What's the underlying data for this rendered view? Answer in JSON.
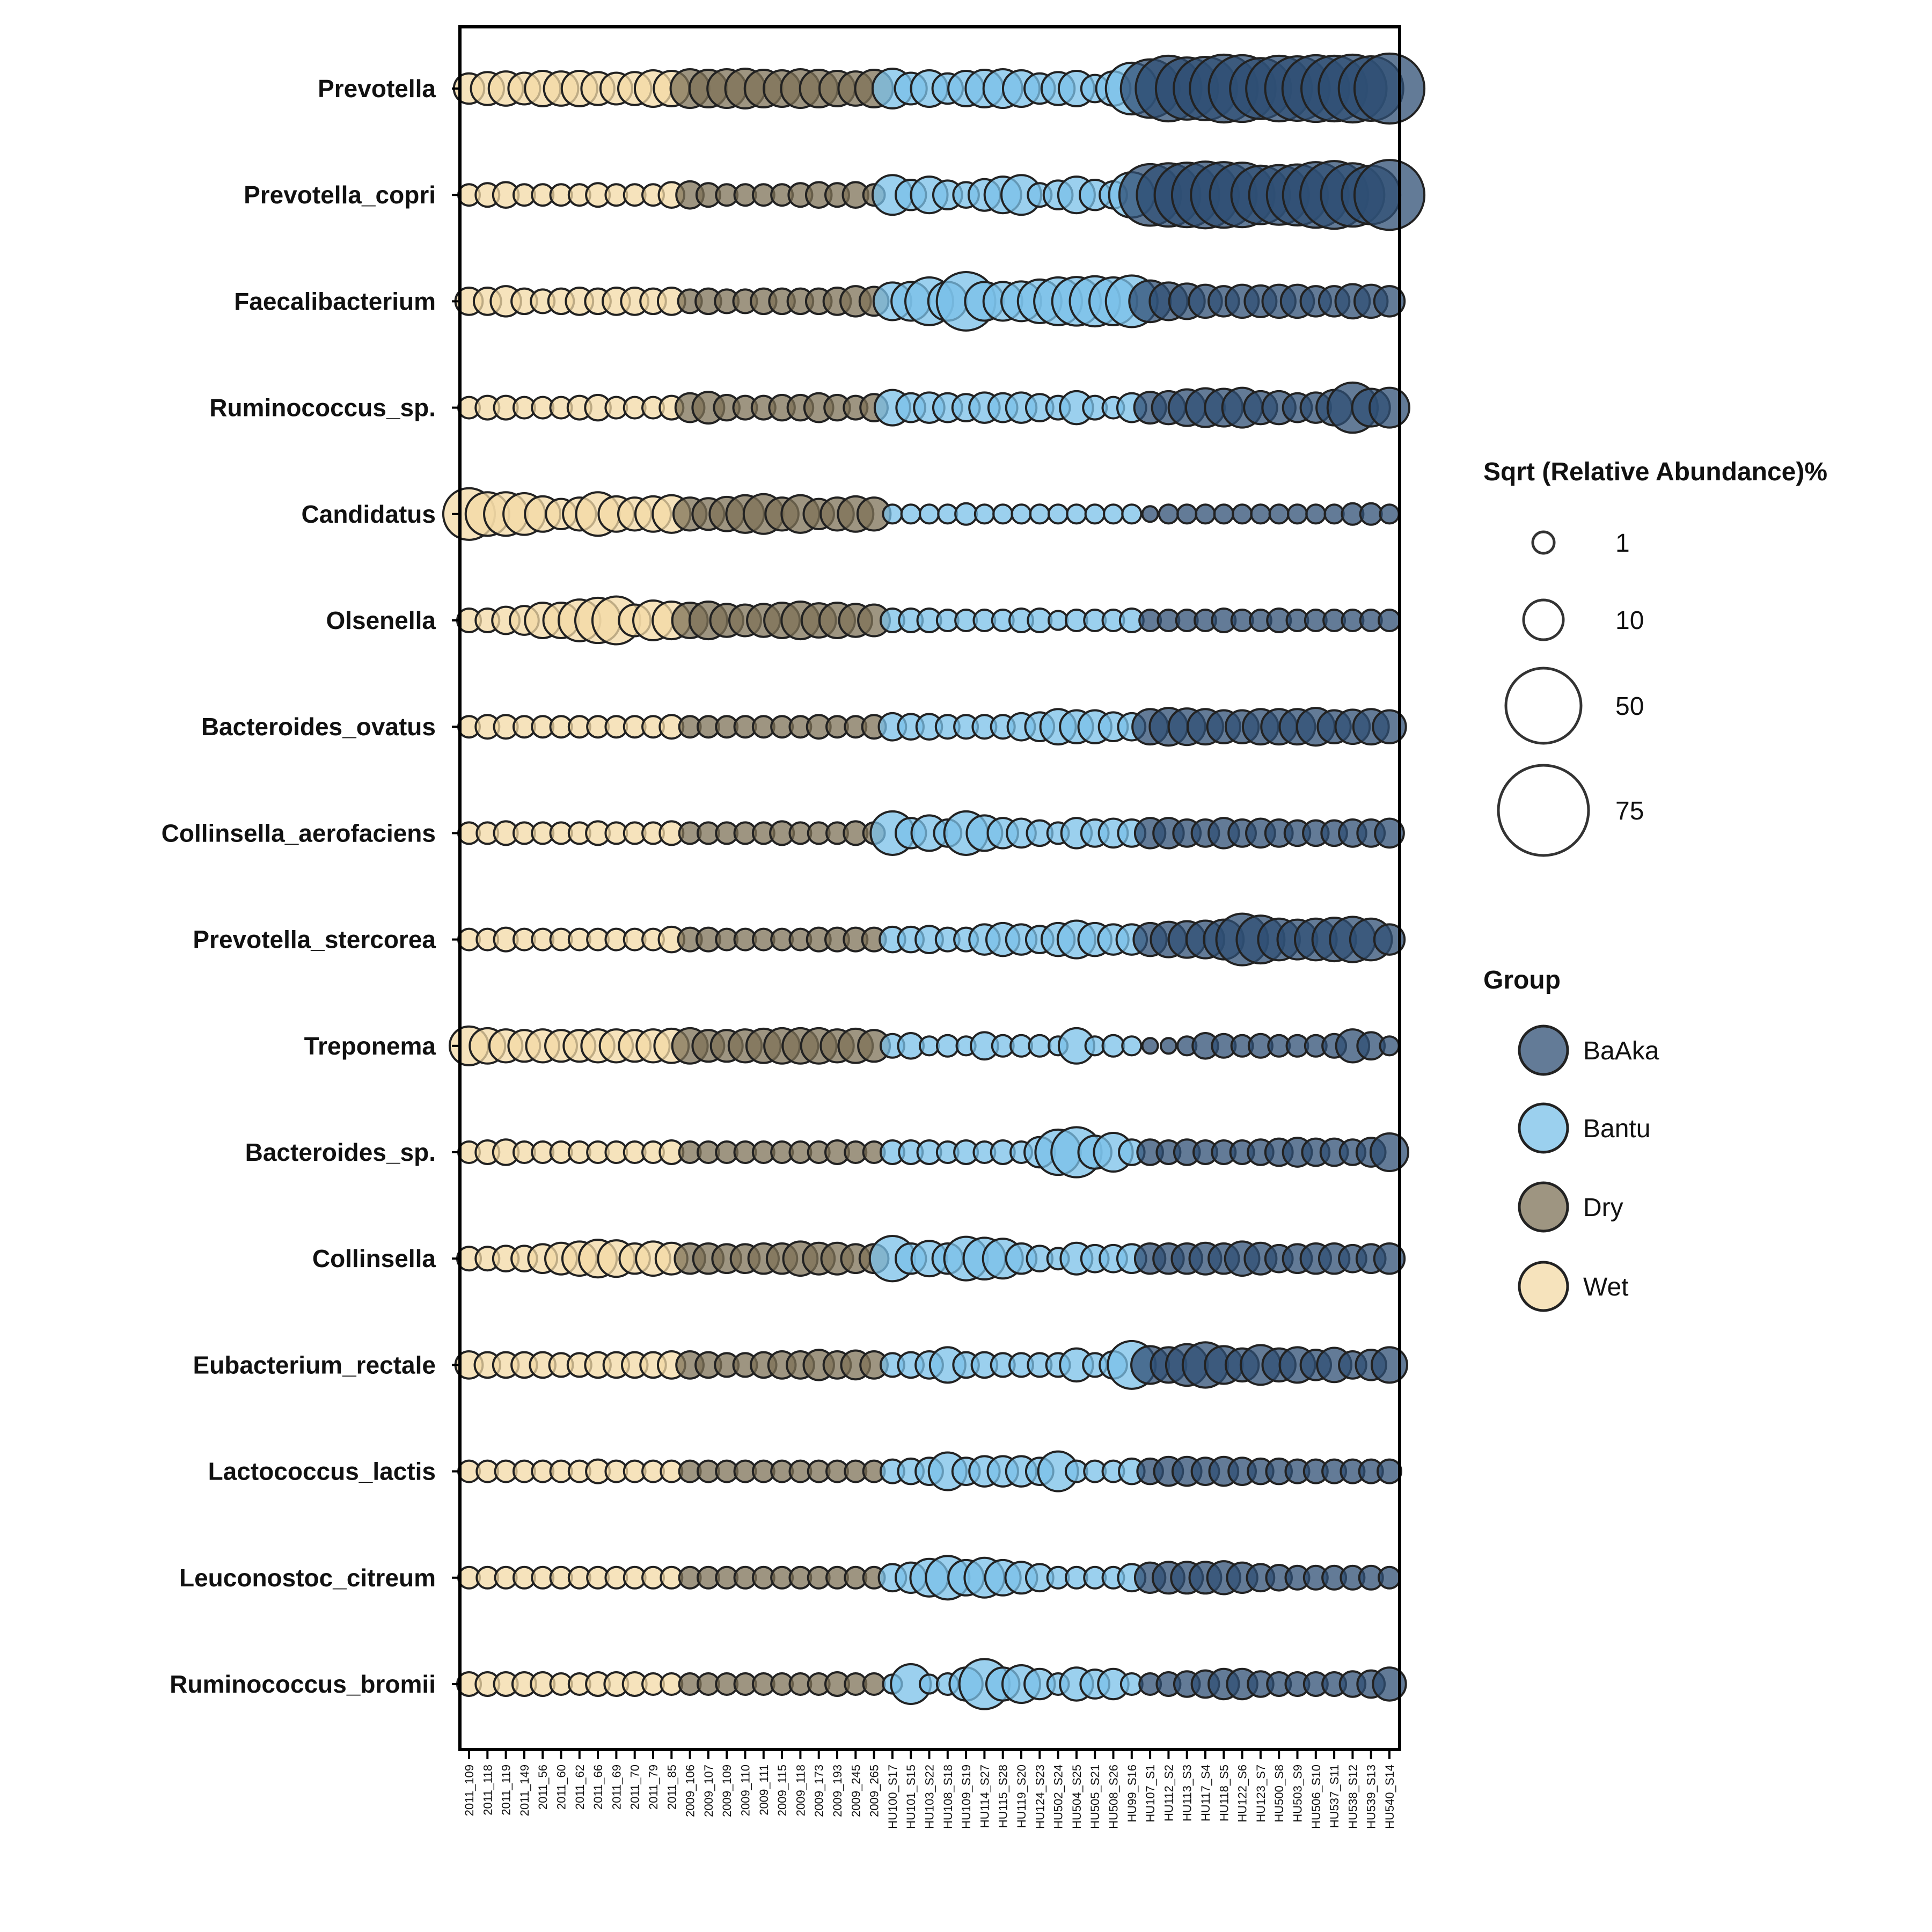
{
  "chart_data": {
    "type": "bubble",
    "samples": [
      "2011_109",
      "2011_118",
      "2011_119",
      "2011_149",
      "2011_56",
      "2011_60",
      "2011_62",
      "2011_66",
      "2011_69",
      "2011_70",
      "2011_79",
      "2011_85",
      "2009_106",
      "2009_107",
      "2009_109",
      "2009_110",
      "2009_111",
      "2009_115",
      "2009_118",
      "2009_173",
      "2009_193",
      "2009_245",
      "2009_265",
      "HU100_S17",
      "HU101_S15",
      "HU103_S22",
      "HU108_S18",
      "HU109_S19",
      "HU114_S27",
      "HU115_S28",
      "HU119_S20",
      "HU124_S23",
      "HU502_S24",
      "HU504_S25",
      "HU505_S21",
      "HU508_S26",
      "HU99_S16",
      "HU107_S1",
      "HU112_S2",
      "HU113_S3",
      "HU117_S4",
      "HU118_S5",
      "HU122_S6",
      "HU123_S7",
      "HU500_S8",
      "HU503_S9",
      "HU506_S10",
      "HU537_S11",
      "HU538_S12",
      "HU539_S13",
      "HU540_S14"
    ],
    "sample_groups": [
      "Wet",
      "Wet",
      "Wet",
      "Wet",
      "Wet",
      "Wet",
      "Wet",
      "Wet",
      "Wet",
      "Wet",
      "Wet",
      "Wet",
      "Dry",
      "Dry",
      "Dry",
      "Dry",
      "Dry",
      "Dry",
      "Dry",
      "Dry",
      "Dry",
      "Dry",
      "Dry",
      "Bantu",
      "Bantu",
      "Bantu",
      "Bantu",
      "Bantu",
      "Bantu",
      "Bantu",
      "Bantu",
      "Bantu",
      "Bantu",
      "Bantu",
      "Bantu",
      "Bantu",
      "Bantu",
      "BaAka",
      "BaAka",
      "BaAka",
      "BaAka",
      "BaAka",
      "BaAka",
      "BaAka",
      "BaAka",
      "BaAka",
      "BaAka",
      "BaAka",
      "BaAka",
      "BaAka",
      "BaAka"
    ],
    "taxa": [
      "Prevotella",
      "Prevotella_copri",
      "Faecalibacterium",
      "Ruminococcus_sp.",
      "Candidatus",
      "Olsenella",
      "Bacteroides_ovatus",
      "Collinsella_aerofaciens",
      "Prevotella_stercorea",
      "Treponema",
      "Bacteroides_sp.",
      "Collinsella",
      "Eubacterium_rectale",
      "Lactococcus_lactis",
      "Leuconostoc_citreum",
      "Ruminococcus_bromii"
    ],
    "values": [
      [
        8,
        10,
        11,
        9,
        12,
        11,
        12,
        10,
        9,
        10,
        13,
        12,
        15,
        14,
        15,
        16,
        14,
        13,
        15,
        14,
        12,
        11,
        14,
        16,
        9,
        13,
        8,
        12,
        14,
        15,
        13,
        8,
        10,
        12,
        6,
        11,
        30,
        40,
        52,
        46,
        48,
        56,
        54,
        44,
        52,
        50,
        54,
        52,
        56,
        50,
        60
      ],
      [
        3,
        4,
        5,
        3,
        3,
        3,
        3,
        4,
        3,
        3,
        3,
        5,
        6,
        4,
        3,
        3,
        3,
        3,
        4,
        5,
        4,
        5,
        3,
        16,
        8,
        13,
        7,
        5,
        9,
        13,
        16,
        4,
        7,
        13,
        8,
        6,
        22,
        45,
        48,
        50,
        54,
        52,
        50,
        40,
        42,
        44,
        52,
        56,
        48,
        40,
        60
      ],
      [
        6,
        6,
        8,
        5,
        4,
        5,
        6,
        5,
        6,
        6,
        5,
        6,
        4,
        5,
        4,
        4,
        5,
        5,
        5,
        5,
        6,
        8,
        7,
        14,
        15,
        25,
        15,
        40,
        15,
        15,
        16,
        20,
        25,
        26,
        28,
        25,
        30,
        18,
        14,
        12,
        10,
        8,
        10,
        9,
        10,
        10,
        8,
        8,
        11,
        10,
        8
      ],
      [
        3,
        4,
        4,
        3,
        3,
        3,
        4,
        5,
        3,
        3,
        3,
        4,
        7,
        9,
        5,
        4,
        4,
        5,
        5,
        7,
        5,
        4,
        6,
        12,
        7,
        8,
        7,
        6,
        8,
        7,
        8,
        6,
        4,
        10,
        4,
        3,
        7,
        9,
        10,
        13,
        15,
        14,
        16,
        10,
        10,
        7,
        8,
        12,
        28,
        14,
        16
      ],
      [
        30,
        20,
        20,
        18,
        12,
        8,
        10,
        20,
        12,
        10,
        12,
        14,
        10,
        9,
        11,
        14,
        16,
        10,
        14,
        8,
        10,
        12,
        10,
        2,
        2,
        2,
        2,
        3,
        2,
        2,
        2,
        2,
        2,
        2,
        2,
        2,
        2,
        1,
        2,
        2,
        2,
        2,
        2,
        2,
        2,
        2,
        2,
        2,
        3,
        3,
        2
      ],
      [
        4,
        4,
        6,
        7,
        12,
        12,
        18,
        22,
        25,
        9,
        16,
        14,
        12,
        14,
        10,
        9,
        10,
        12,
        14,
        11,
        12,
        10,
        9,
        4,
        4,
        4,
        3,
        3,
        3,
        3,
        4,
        4,
        2,
        3,
        3,
        3,
        4,
        3,
        3,
        3,
        3,
        4,
        3,
        3,
        4,
        3,
        3,
        3,
        3,
        3,
        3
      ],
      [
        3,
        4,
        4,
        3,
        3,
        3,
        3,
        3,
        3,
        3,
        3,
        4,
        3,
        3,
        3,
        3,
        3,
        3,
        3,
        4,
        3,
        3,
        4,
        6,
        5,
        5,
        4,
        4,
        4,
        4,
        6,
        7,
        12,
        10,
        10,
        7,
        6,
        12,
        14,
        13,
        12,
        10,
        10,
        12,
        12,
        12,
        14,
        10,
        11,
        12,
        10
      ],
      [
        3,
        3,
        4,
        3,
        3,
        3,
        3,
        4,
        3,
        3,
        3,
        4,
        3,
        3,
        3,
        3,
        3,
        4,
        3,
        3,
        3,
        4,
        3,
        20,
        8,
        12,
        6,
        20,
        12,
        8,
        7,
        5,
        3,
        8,
        6,
        7,
        6,
        8,
        8,
        6,
        6,
        8,
        6,
        7,
        6,
        5,
        5,
        5,
        6,
        6,
        7
      ],
      [
        3,
        3,
        4,
        3,
        3,
        3,
        3,
        3,
        3,
        3,
        3,
        5,
        4,
        4,
        3,
        3,
        3,
        3,
        3,
        4,
        4,
        4,
        4,
        5,
        5,
        6,
        4,
        4,
        8,
        10,
        8,
        6,
        10,
        14,
        10,
        8,
        8,
        10,
        12,
        13,
        14,
        16,
        30,
        25,
        18,
        16,
        18,
        20,
        22,
        18,
        8
      ],
      [
        15,
        12,
        10,
        9,
        10,
        9,
        9,
        10,
        10,
        9,
        10,
        11,
        12,
        9,
        9,
        10,
        11,
        12,
        12,
        12,
        10,
        11,
        9,
        4,
        5,
        2,
        3,
        2,
        6,
        3,
        3,
        3,
        2,
        12,
        2,
        3,
        2,
        1,
        1,
        2,
        5,
        4,
        3,
        4,
        3,
        3,
        3,
        4,
        10,
        6,
        2
      ],
      [
        3,
        4,
        5,
        3,
        3,
        3,
        3,
        3,
        3,
        3,
        3,
        4,
        3,
        3,
        3,
        3,
        3,
        3,
        3,
        3,
        4,
        3,
        3,
        4,
        4,
        4,
        3,
        4,
        3,
        4,
        3,
        8,
        22,
        28,
        10,
        15,
        5,
        5,
        4,
        5,
        4,
        4,
        4,
        5,
        6,
        7,
        6,
        6,
        5,
        7,
        14
      ],
      [
        4,
        4,
        5,
        5,
        7,
        9,
        11,
        14,
        13,
        8,
        11,
        9,
        8,
        8,
        7,
        7,
        8,
        8,
        11,
        9,
        9,
        7,
        7,
        22,
        8,
        12,
        8,
        20,
        18,
        16,
        8,
        5,
        3,
        9,
        6,
        6,
        7,
        8,
        8,
        8,
        9,
        8,
        11,
        9,
        6,
        7,
        8,
        8,
        6,
        7,
        8
      ],
      [
        6,
        5,
        5,
        5,
        5,
        4,
        4,
        5,
        5,
        5,
        5,
        6,
        6,
        5,
        4,
        4,
        5,
        6,
        6,
        8,
        6,
        7,
        6,
        4,
        5,
        6,
        12,
        5,
        5,
        4,
        4,
        4,
        4,
        10,
        4,
        6,
        25,
        14,
        12,
        18,
        22,
        14,
        10,
        16,
        10,
        12,
        8,
        11,
        6,
        8,
        12
      ],
      [
        3,
        3,
        3,
        3,
        3,
        3,
        3,
        4,
        3,
        3,
        3,
        3,
        3,
        3,
        3,
        3,
        3,
        3,
        3,
        3,
        3,
        3,
        3,
        4,
        5,
        6,
        14,
        6,
        8,
        8,
        8,
        6,
        16,
        3,
        3,
        3,
        5,
        5,
        7,
        7,
        6,
        7,
        6,
        5,
        5,
        4,
        4,
        4,
        4,
        4,
        4
      ],
      [
        3,
        3,
        3,
        3,
        3,
        3,
        3,
        3,
        3,
        3,
        3,
        3,
        3,
        3,
        3,
        3,
        3,
        3,
        3,
        3,
        3,
        3,
        3,
        6,
        8,
        14,
        20,
        12,
        16,
        12,
        9,
        6,
        3,
        3,
        3,
        3,
        6,
        8,
        9,
        9,
        9,
        10,
        8,
        6,
        5,
        4,
        4,
        4,
        4,
        4,
        3
      ],
      [
        4,
        4,
        4,
        4,
        4,
        3,
        3,
        4,
        4,
        4,
        3,
        3,
        3,
        3,
        3,
        3,
        3,
        3,
        3,
        3,
        4,
        3,
        3,
        2,
        16,
        2,
        3,
        10,
        28,
        10,
        14,
        8,
        3,
        10,
        7,
        8,
        3,
        3,
        4,
        5,
        6,
        8,
        8,
        5,
        4,
        4,
        4,
        4,
        5,
        6,
        10
      ]
    ],
    "size_legend": {
      "title": "Sqrt (Relative Abundance)%",
      "entries": [
        {
          "label": "1",
          "value": 1
        },
        {
          "label": "10",
          "value": 10
        },
        {
          "label": "50",
          "value": 50
        },
        {
          "label": "75",
          "value": 75
        }
      ]
    },
    "group_legend": {
      "title": "Group",
      "entries": [
        {
          "name": "BaAka",
          "color": "#2f4f74"
        },
        {
          "name": "Bantu",
          "color": "#7ac0e8"
        },
        {
          "name": "Dry",
          "color": "#7d7257"
        },
        {
          "name": "Wet",
          "color": "#f3d9a6"
        }
      ]
    },
    "grid": false,
    "legend_position": "right"
  }
}
